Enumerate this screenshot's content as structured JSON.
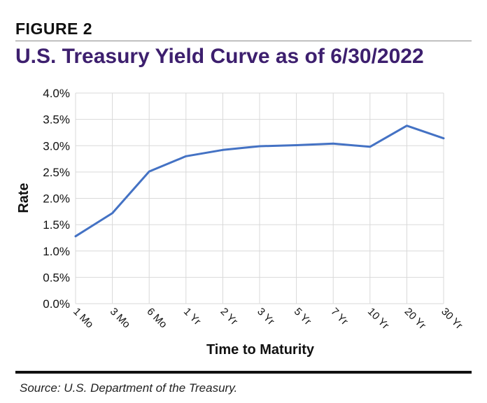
{
  "figure_label": "FIGURE 2",
  "source": "Source: U.S. Department of the Treasury.",
  "colors": {
    "line": "#4472c4",
    "title": "#3d1f6e",
    "grid": "#d9d9d9"
  },
  "chart_data": {
    "type": "line",
    "title": "U.S. Treasury Yield Curve as of 6/30/2022",
    "xlabel": "Time to Maturity",
    "ylabel": "Rate",
    "categories": [
      "1 Mo",
      "3 Mo",
      "6 Mo",
      "1 Yr",
      "2 Yr",
      "3 Yr",
      "5 Yr",
      "7 Yr",
      "10 Yr",
      "20 Yr",
      "30 Yr"
    ],
    "series": [
      {
        "values": [
          1.28,
          1.72,
          2.51,
          2.8,
          2.92,
          2.99,
          3.01,
          3.04,
          2.98,
          3.38,
          3.14
        ]
      }
    ],
    "ylim": [
      0,
      4.0
    ],
    "yticks": [
      "0.0%",
      "0.5%",
      "1.0%",
      "1.5%",
      "2.0%",
      "2.5%",
      "3.0%",
      "3.5%",
      "4.0%"
    ],
    "grid": true,
    "legend": "none"
  }
}
